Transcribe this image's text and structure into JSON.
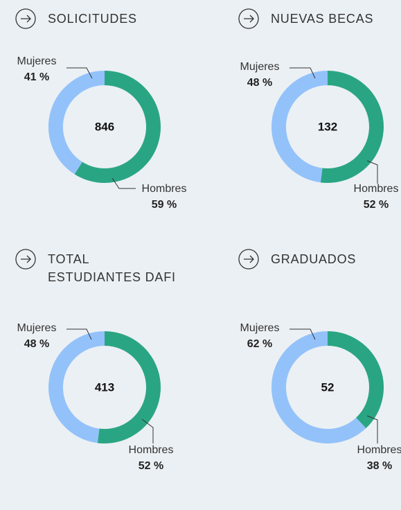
{
  "chart_data": [
    {
      "type": "pie",
      "title": "SOLICITUDES",
      "total": 846,
      "series": [
        {
          "name": "Mujeres",
          "color": "#93c2fa",
          "values": [
            41
          ],
          "value_labels": [
            "41 %"
          ]
        },
        {
          "name": "Hombres",
          "color": "#2aa584",
          "values": [
            59
          ],
          "value_labels": [
            "59 %"
          ]
        }
      ]
    },
    {
      "type": "pie",
      "title": "NUEVAS BECAS",
      "total": 132,
      "series": [
        {
          "name": "Mujeres",
          "color": "#93c2fa",
          "values": [
            48
          ],
          "value_labels": [
            "48 %"
          ]
        },
        {
          "name": "Hombres",
          "color": "#2aa584",
          "values": [
            52
          ],
          "value_labels": [
            "52 %"
          ]
        }
      ]
    },
    {
      "type": "pie",
      "title": "TOTAL ESTUDIANTES DAFI",
      "total": 413,
      "series": [
        {
          "name": "Mujeres",
          "color": "#93c2fa",
          "values": [
            48
          ],
          "value_labels": [
            "48 %"
          ]
        },
        {
          "name": "Hombres",
          "color": "#2aa584",
          "values": [
            52
          ],
          "value_labels": [
            "52 %"
          ]
        }
      ]
    },
    {
      "type": "pie",
      "title": "GRADUADOS",
      "total": 52,
      "series": [
        {
          "name": "Mujeres",
          "color": "#93c2fa",
          "values": [
            62
          ],
          "value_labels": [
            "62 %"
          ]
        },
        {
          "name": "Hombres",
          "color": "#2aa584",
          "values": [
            38
          ],
          "value_labels": [
            "38 %"
          ]
        }
      ]
    }
  ]
}
